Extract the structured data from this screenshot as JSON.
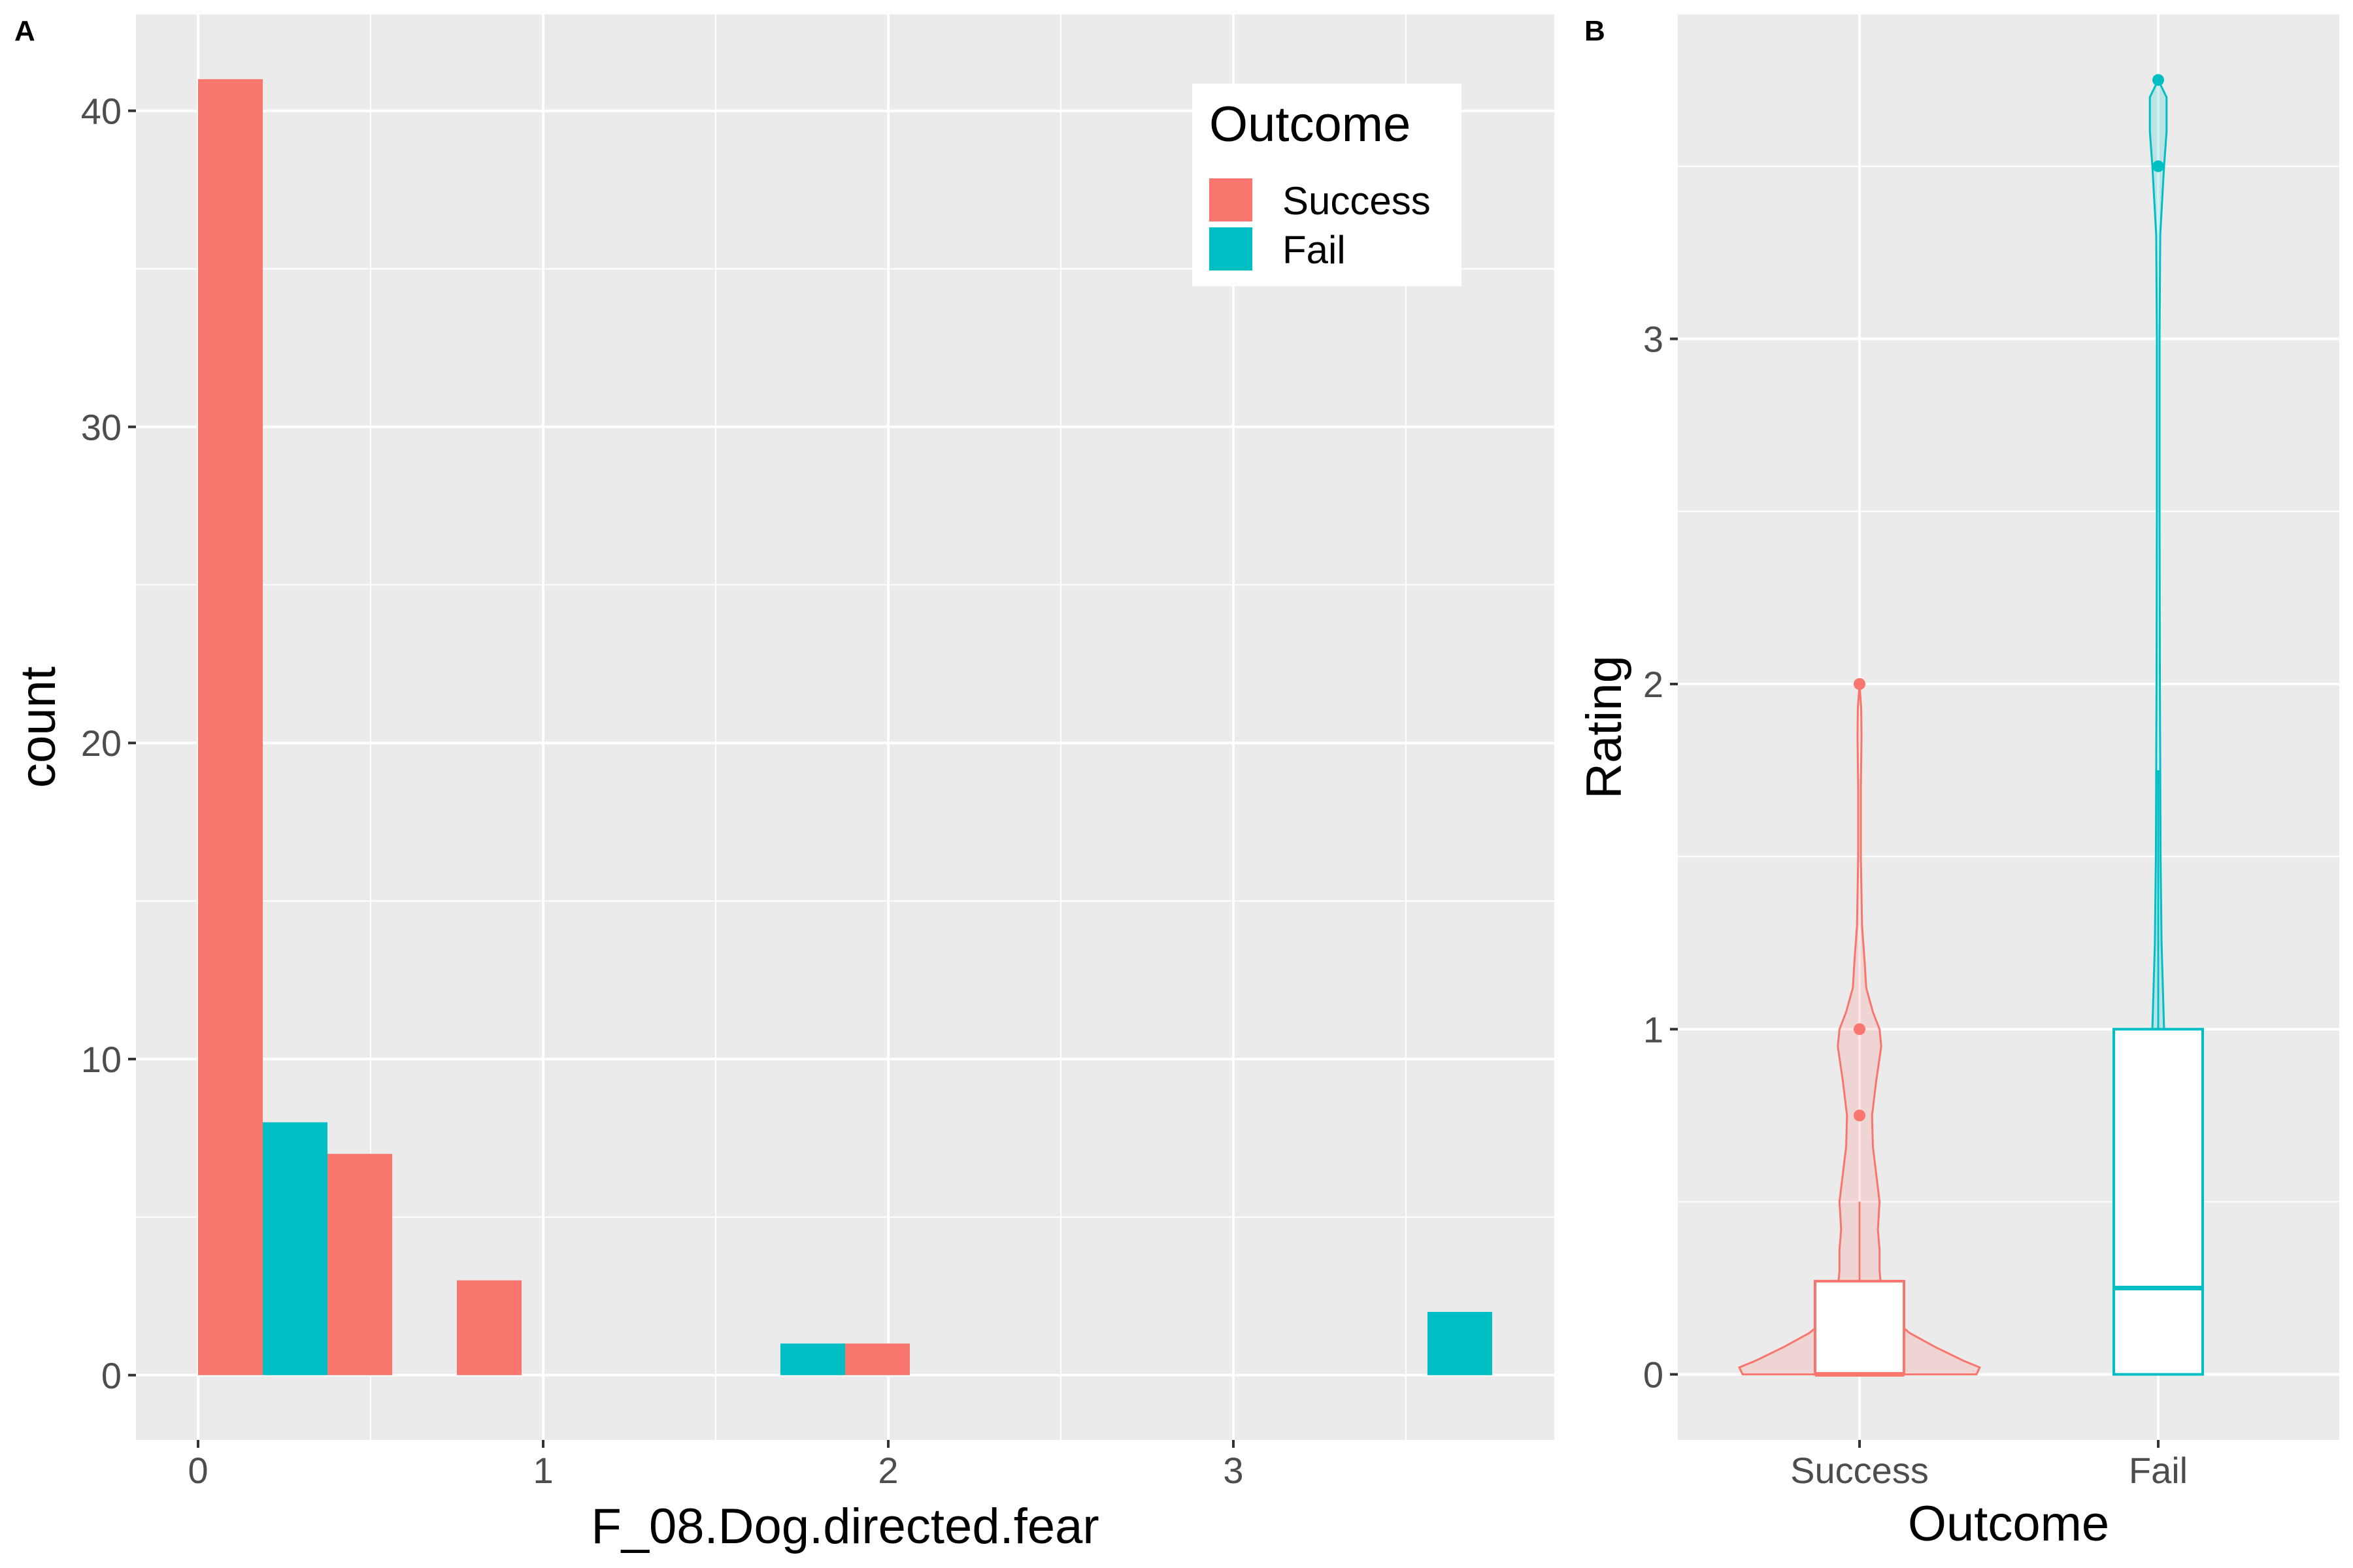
{
  "chart_data": [
    {
      "panel": "A",
      "type": "bar",
      "xlabel": "F_08.Dog.directed.fear",
      "ylabel": "count",
      "xlim": [
        -0.18,
        3.93
      ],
      "ylim": [
        -2.05,
        43.05
      ],
      "x_ticks": [
        0,
        1,
        2,
        3
      ],
      "x_minor": [
        0.5,
        1.5,
        2.5,
        3.5
      ],
      "y_ticks": [
        0,
        10,
        20,
        30,
        40
      ],
      "y_minor": [
        5,
        15,
        25,
        35
      ],
      "bar_width": 0.1875,
      "grid": true,
      "legend": {
        "title": "Outcome",
        "position": "top-right",
        "entries": [
          {
            "label": "Success",
            "color": "#F8766D"
          },
          {
            "label": "Fail",
            "color": "#00BFC4"
          }
        ]
      },
      "series": [
        {
          "name": "Success",
          "color": "#F8766D",
          "points": [
            {
              "x": 0.09375,
              "y": 41
            },
            {
              "x": 0.46875,
              "y": 7
            },
            {
              "x": 0.84375,
              "y": 3
            },
            {
              "x": 1.96875,
              "y": 1
            }
          ]
        },
        {
          "name": "Fail",
          "color": "#00BFC4",
          "points": [
            {
              "x": 0.28125,
              "y": 8
            },
            {
              "x": 1.78125,
              "y": 1
            },
            {
              "x": 3.65625,
              "y": 2
            }
          ]
        }
      ]
    },
    {
      "panel": "B",
      "type": "violin",
      "xlabel": "Outcome",
      "ylabel": "Rating",
      "categories": [
        "Success",
        "Fail"
      ],
      "ylim": [
        -0.19,
        3.94
      ],
      "y_ticks": [
        0,
        1,
        2,
        3
      ],
      "y_minor": [
        0.5,
        1.5,
        2.5,
        3.5
      ],
      "grid": true,
      "groups": [
        {
          "name": "Success",
          "color": "#F8766D",
          "fill": "#F8766D",
          "boxplot": {
            "min": 0,
            "q1": 0,
            "median": 0,
            "q3": 0.27,
            "whisker_high": 0.5
          },
          "outliers": [
            0.75,
            1,
            2
          ],
          "violin": [
            [
              0,
              0.7
            ],
            [
              0.02,
              0.72
            ],
            [
              0.04,
              0.62
            ],
            [
              0.08,
              0.45
            ],
            [
              0.12,
              0.3
            ],
            [
              0.16,
              0.2
            ],
            [
              0.2,
              0.15
            ],
            [
              0.25,
              0.13
            ],
            [
              0.3,
              0.12
            ],
            [
              0.36,
              0.12
            ],
            [
              0.42,
              0.11
            ],
            [
              0.5,
              0.12
            ],
            [
              0.58,
              0.1
            ],
            [
              0.66,
              0.08
            ],
            [
              0.75,
              0.075
            ],
            [
              0.85,
              0.1
            ],
            [
              0.95,
              0.13
            ],
            [
              1.0,
              0.12
            ],
            [
              1.05,
              0.08
            ],
            [
              1.12,
              0.04
            ],
            [
              1.2,
              0.03
            ],
            [
              1.3,
              0.015
            ],
            [
              1.5,
              0.008
            ],
            [
              1.7,
              0.008
            ],
            [
              1.85,
              0.012
            ],
            [
              1.93,
              0.01
            ],
            [
              2.0,
              0
            ]
          ]
        },
        {
          "name": "Fail",
          "color": "#00BFC4",
          "fill": "#00BFC4",
          "boxplot": {
            "min": 0,
            "q1": 0,
            "median": 0.25,
            "q3": 1,
            "whisker_high": 1.75
          },
          "outliers": [
            3.5,
            3.75
          ],
          "violin": [
            [
              0,
              0.05
            ],
            [
              0.1,
              0.05
            ],
            [
              0.25,
              0.05
            ],
            [
              0.5,
              0.04
            ],
            [
              0.75,
              0.035
            ],
            [
              1.0,
              0.035
            ],
            [
              1.25,
              0.02
            ],
            [
              1.5,
              0.014
            ],
            [
              1.75,
              0.012
            ],
            [
              2.0,
              0.01
            ],
            [
              2.5,
              0.008
            ],
            [
              3.0,
              0.008
            ],
            [
              3.3,
              0.012
            ],
            [
              3.5,
              0.035
            ],
            [
              3.6,
              0.05
            ],
            [
              3.7,
              0.05
            ],
            [
              3.75,
              0
            ]
          ]
        }
      ]
    }
  ]
}
